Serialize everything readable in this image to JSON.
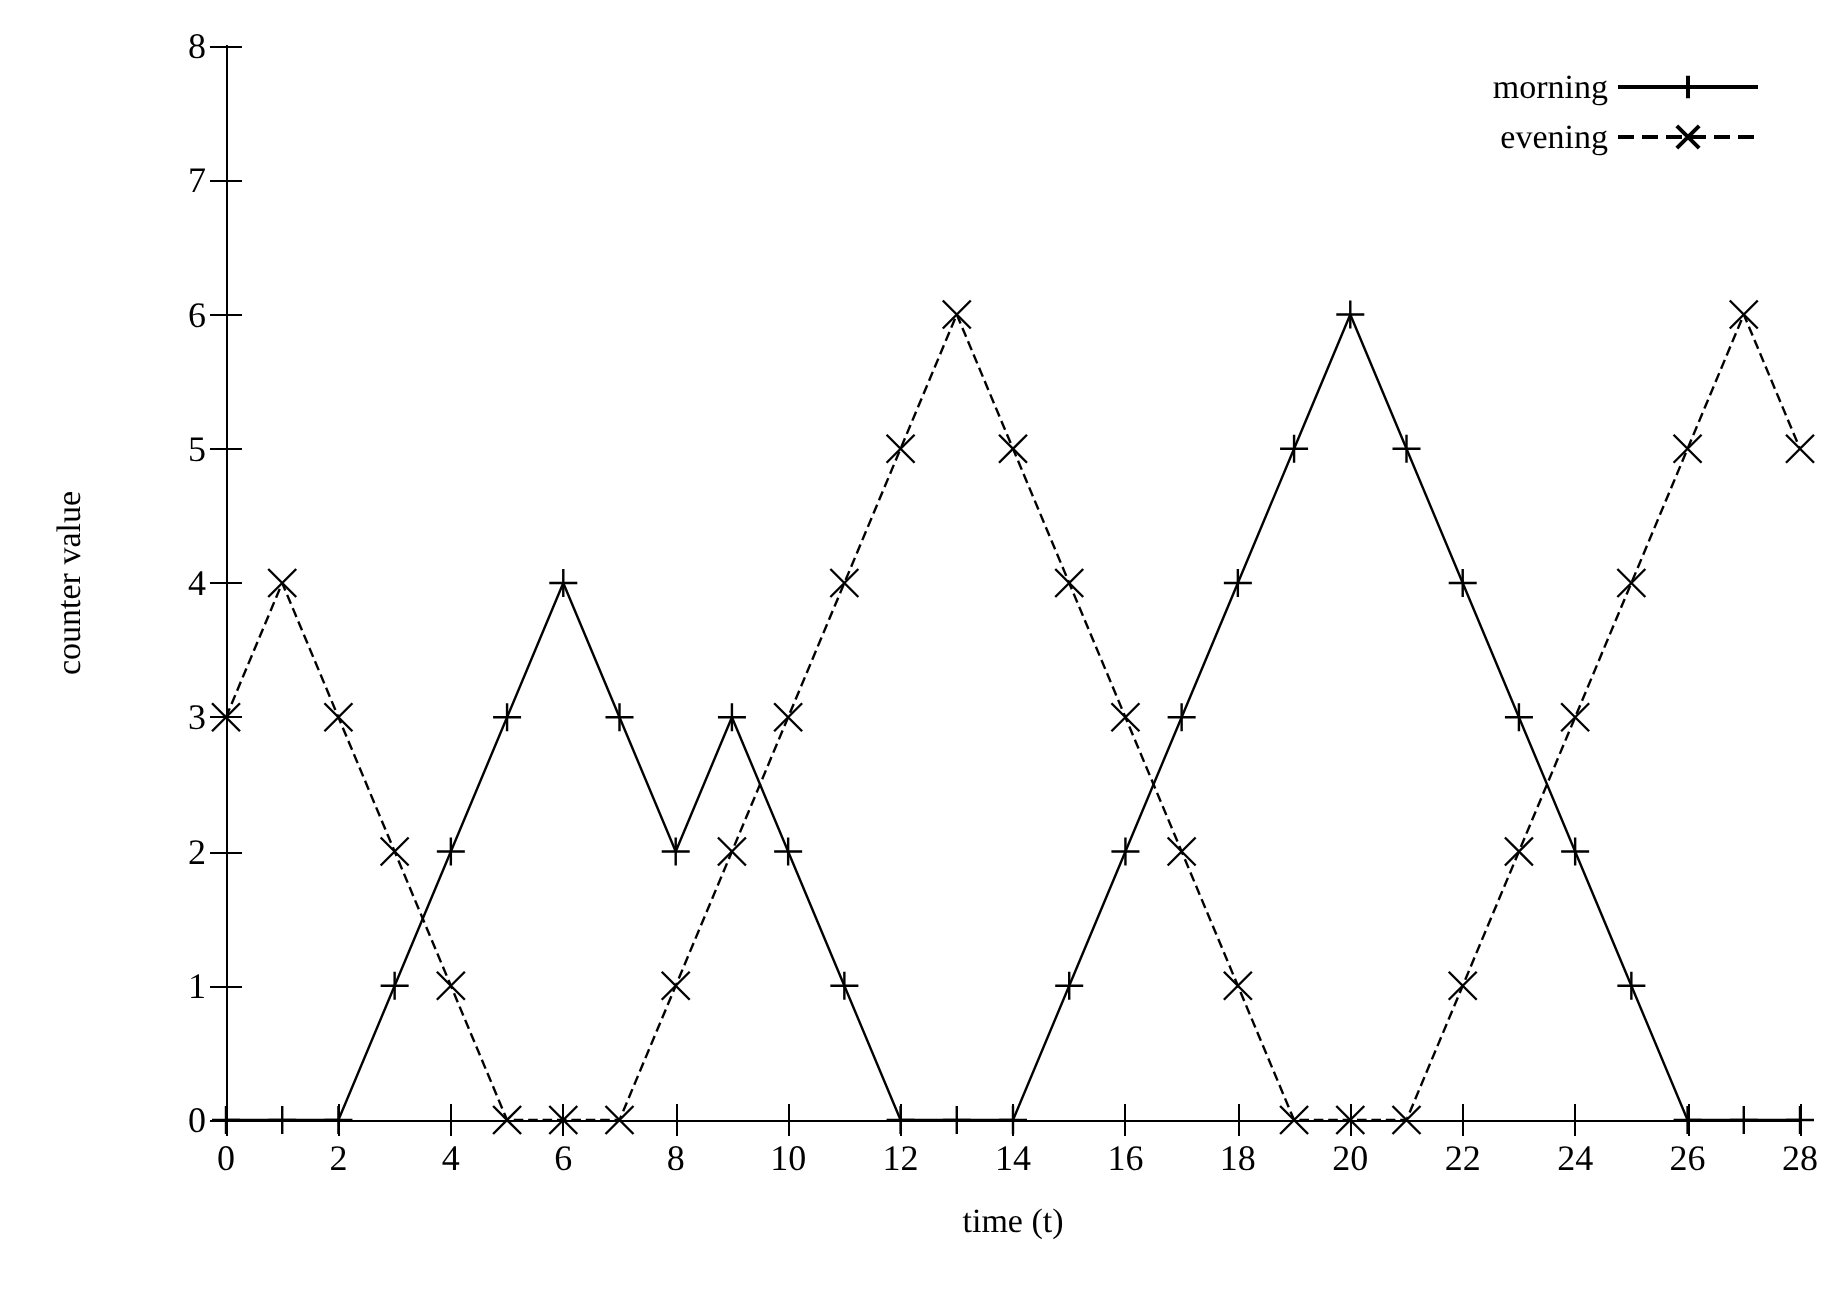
{
  "chart_data": {
    "type": "line",
    "xlabel": "time (t)",
    "ylabel": "counter value",
    "x": [
      0,
      1,
      2,
      3,
      4,
      5,
      6,
      7,
      8,
      9,
      10,
      11,
      12,
      13,
      14,
      15,
      16,
      17,
      18,
      19,
      20,
      21,
      22,
      23,
      24,
      25,
      26,
      27,
      28
    ],
    "series": [
      {
        "name": "morning",
        "color": "#000000",
        "marker": "plus",
        "line_style": "solid",
        "values": [
          0,
          0,
          0,
          1,
          2,
          3,
          4,
          3,
          2,
          3,
          2,
          1,
          0,
          0,
          0,
          1,
          2,
          3,
          4,
          5,
          6,
          5,
          4,
          3,
          2,
          1,
          0,
          0,
          0
        ]
      },
      {
        "name": "evening",
        "color": "#000000",
        "marker": "cross",
        "line_style": "dashed",
        "values": [
          3,
          4,
          3,
          2,
          1,
          0,
          0,
          0,
          1,
          2,
          3,
          4,
          5,
          6,
          5,
          4,
          3,
          2,
          1,
          0,
          0,
          0,
          1,
          2,
          3,
          4,
          5,
          6,
          5
        ]
      }
    ],
    "xlim": [
      0,
      28
    ],
    "xticks": [
      0,
      2,
      4,
      6,
      8,
      10,
      12,
      14,
      16,
      18,
      20,
      22,
      24,
      26,
      28
    ],
    "ylim": [
      0,
      8
    ],
    "yticks": [
      0,
      1,
      2,
      3,
      4,
      5,
      6,
      7,
      8
    ],
    "grid": false,
    "legend": "top right"
  }
}
